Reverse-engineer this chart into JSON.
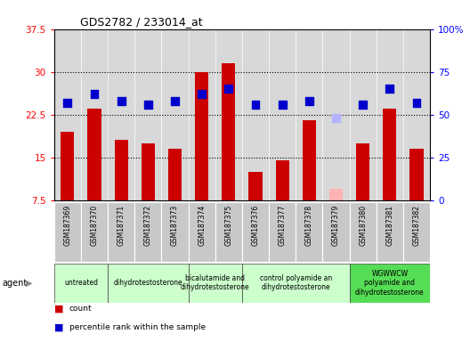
{
  "title": "GDS2782 / 233014_at",
  "samples": [
    "GSM187369",
    "GSM187370",
    "GSM187371",
    "GSM187372",
    "GSM187373",
    "GSM187374",
    "GSM187375",
    "GSM187376",
    "GSM187377",
    "GSM187378",
    "GSM187379",
    "GSM187380",
    "GSM187381",
    "GSM187382"
  ],
  "bar_values": [
    19.5,
    23.5,
    18.0,
    17.5,
    16.5,
    30.0,
    31.5,
    12.5,
    14.5,
    21.5,
    9.5,
    17.5,
    23.5,
    16.5
  ],
  "bar_absent": [
    false,
    false,
    false,
    false,
    false,
    false,
    false,
    false,
    false,
    false,
    true,
    false,
    false,
    false
  ],
  "rank_values": [
    57,
    62,
    58,
    56,
    58,
    62,
    65,
    56,
    56,
    58,
    48,
    56,
    65,
    57
  ],
  "rank_absent": [
    false,
    false,
    false,
    false,
    false,
    false,
    false,
    false,
    false,
    false,
    true,
    false,
    false,
    false
  ],
  "bar_color": "#cc0000",
  "bar_absent_color": "#ffb3b3",
  "rank_color": "#0000cc",
  "rank_absent_color": "#b3b3ff",
  "ylim_left": [
    7.5,
    37.5
  ],
  "ylim_right": [
    0,
    100
  ],
  "yticks_left": [
    7.5,
    15.0,
    22.5,
    30.0,
    37.5
  ],
  "ytick_labels_left": [
    "7.5",
    "15",
    "22.5",
    "30",
    "37.5"
  ],
  "yticks_right": [
    0,
    25,
    50,
    75,
    100
  ],
  "ytick_labels_right": [
    "0",
    "25",
    "50",
    "75",
    "100%"
  ],
  "hlines": [
    15.0,
    22.5,
    30.0
  ],
  "agent_groups": [
    {
      "label": "untreated",
      "start": 0,
      "end": 2,
      "color": "#ccffcc"
    },
    {
      "label": "dihydrotestosterone",
      "start": 2,
      "end": 5,
      "color": "#ccffcc"
    },
    {
      "label": "bicalutamide and\ndihydrotestosterone",
      "start": 5,
      "end": 7,
      "color": "#ccffcc"
    },
    {
      "label": "control polyamide an\ndihydrotestosterone",
      "start": 7,
      "end": 11,
      "color": "#ccffcc"
    },
    {
      "label": "WGWWCW\npolyamide and\ndihydrotestosterone",
      "start": 11,
      "end": 14,
      "color": "#55dd55"
    }
  ],
  "bar_width": 0.5,
  "rank_marker_size": 40,
  "plot_bg_color": "#d8d8d8",
  "sample_bg_color": "#c8c8c8",
  "fig_bg_color": "#ffffff"
}
